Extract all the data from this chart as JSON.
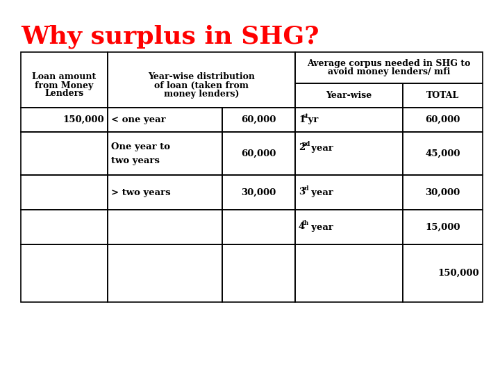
{
  "title": "Why surplus in SHG?",
  "title_color": "#FF0000",
  "title_fontsize": 26,
  "title_fontweight": "bold",
  "bg_color": "#FFFFFF",
  "table_edge_color": "#000000",
  "table_lw": 1.2,
  "col1_header": [
    "Loan amount",
    "from Money",
    "Lenders"
  ],
  "col2_header": [
    "Year-wise distribution",
    "of loan (taken from",
    "money lenders)"
  ],
  "col3_header_top": [
    "Average corpus needed in SHG to",
    "avoid money lenders/ mfi"
  ],
  "col3_sub1": "Year-wise",
  "col3_sub2": "TOTAL",
  "font_family": "serif",
  "fs_header": 9.0,
  "fs_data": 9.5
}
